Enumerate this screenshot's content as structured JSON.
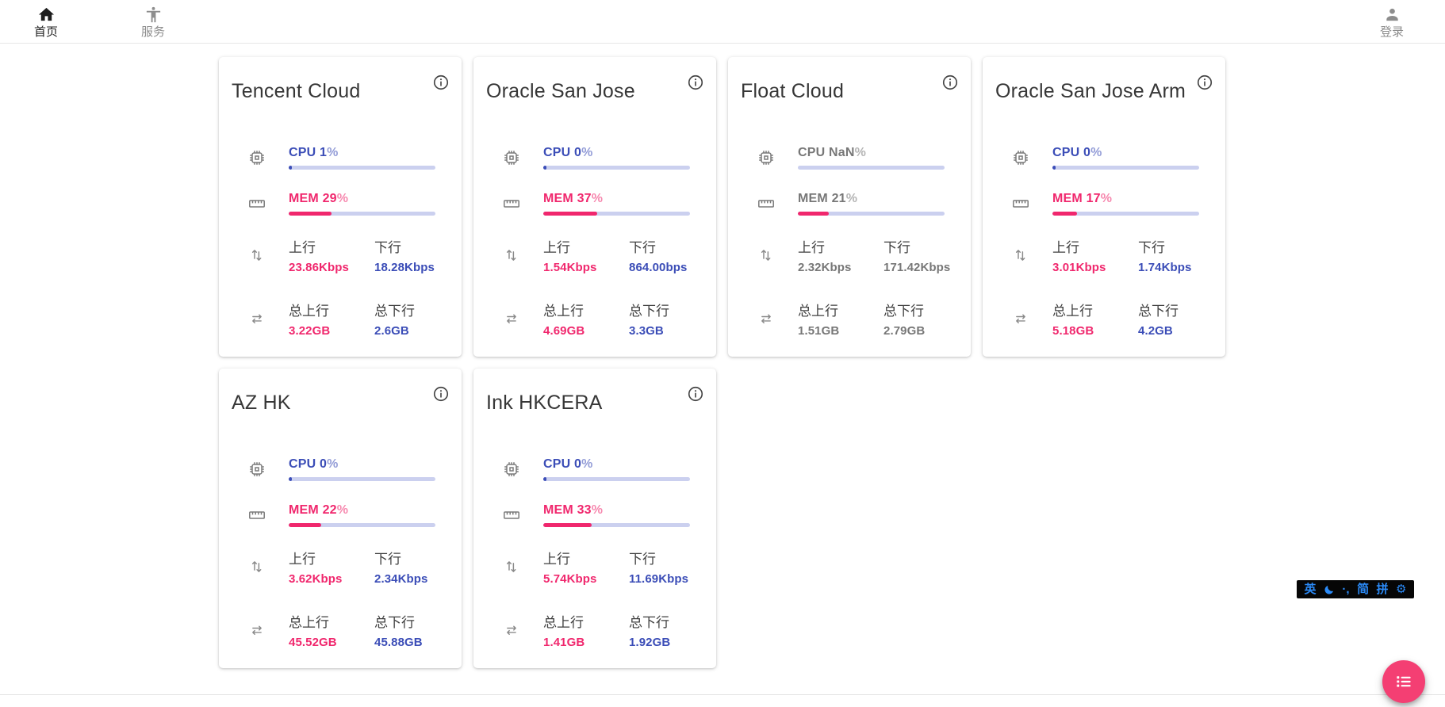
{
  "nav": {
    "home": {
      "label": "首页"
    },
    "services": {
      "label": "服务"
    },
    "login": {
      "label": "登录"
    }
  },
  "labels": {
    "up": "上行",
    "down": "下行",
    "total_up": "总上行",
    "total_down": "总下行",
    "pct": "%"
  },
  "servers": [
    {
      "name": "Tencent Cloud",
      "cpu_text": "CPU 1",
      "cpu_pct": 1,
      "mem_text": "MEM 29",
      "mem_pct": 29,
      "up": "23.86Kbps",
      "down": "18.28Kbps",
      "total_up": "3.22GB",
      "total_down": "2.6GB",
      "muted": false
    },
    {
      "name": "Oracle San Jose",
      "cpu_text": "CPU 0",
      "cpu_pct": 0,
      "mem_text": "MEM 37",
      "mem_pct": 37,
      "up": "1.54Kbps",
      "down": "864.00bps",
      "total_up": "4.69GB",
      "total_down": "3.3GB",
      "muted": false
    },
    {
      "name": "Float Cloud",
      "cpu_text": "CPU NaN",
      "cpu_pct": null,
      "mem_text": "MEM 21",
      "mem_pct": 21,
      "up": "2.32Kbps",
      "down": "171.42Kbps",
      "total_up": "1.51GB",
      "total_down": "2.79GB",
      "muted": true
    },
    {
      "name": "Oracle San Jose Arm",
      "cpu_text": "CPU 0",
      "cpu_pct": 0,
      "mem_text": "MEM 17",
      "mem_pct": 17,
      "up": "3.01Kbps",
      "down": "1.74Kbps",
      "total_up": "5.18GB",
      "total_down": "4.2GB",
      "muted": false
    },
    {
      "name": "AZ HK",
      "cpu_text": "CPU 0",
      "cpu_pct": 0,
      "mem_text": "MEM 22",
      "mem_pct": 22,
      "up": "3.62Kbps",
      "down": "2.34Kbps",
      "total_up": "45.52GB",
      "total_down": "45.88GB",
      "muted": false
    },
    {
      "name": "Ink HKCERA",
      "cpu_text": "CPU 0",
      "cpu_pct": 0,
      "mem_text": "MEM 33",
      "mem_pct": 33,
      "up": "5.74Kbps",
      "down": "11.69Kbps",
      "total_up": "1.41GB",
      "total_down": "1.92GB",
      "muted": false
    }
  ],
  "ime": {
    "mode": "英",
    "punct": "·,",
    "simplified": "简",
    "pinyin": "拼"
  },
  "colors": {
    "accent_blue": "#3b4db7",
    "accent_pink": "#f0276d",
    "bar_track": "#cbd0ef",
    "fab_pink": "#f43f73"
  }
}
